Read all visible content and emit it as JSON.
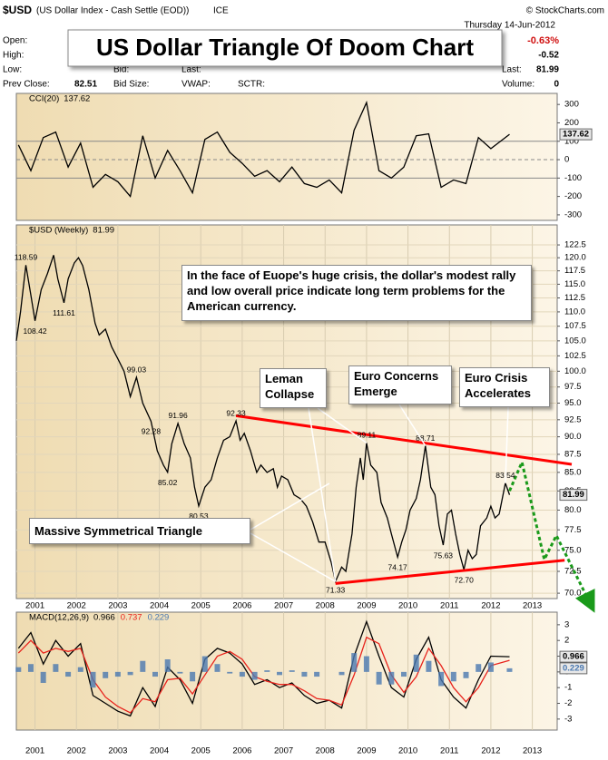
{
  "header": {
    "symbol": "$USD",
    "name": "(US Dollar Index - Cash Settle (EOD))",
    "exchange": "ICE",
    "source": "© StockCharts.com",
    "date": "Thursday 14-Jun-2012",
    "title": "US Dollar Triangle Of Doom Chart",
    "fields": {
      "open": "Open:",
      "high": "High:",
      "low": "Low:",
      "prev_close": "Prev Close:",
      "prev_close_value": "82.51",
      "bid": "Bid:",
      "bid_size": "Bid Size:",
      "last_left": "Last:",
      "vwap": "VWAP:",
      "sctr": "SCTR:",
      "change_pct": "-0.63%",
      "change": "-0.52",
      "last": "Last:",
      "last_value": "81.99",
      "volume": "Volume:",
      "volume_value": "0"
    }
  },
  "notes": [
    "In the face of Euope's huge crisis, the dollar's modest rally and low overall price indicate long term problems for the American currency.",
    "Leman Collapse",
    "Euro Concerns Emerge",
    "Euro Crisis Accelerates",
    "Massive Symmetrical Triangle"
  ],
  "chart_data": [
    {
      "type": "line",
      "label": "CCI(20)",
      "xlim": [
        2000.55,
        2013.6
      ],
      "ylim": [
        -330,
        360
      ],
      "yticks": [
        300,
        200,
        100,
        0,
        -100,
        -200,
        -300
      ],
      "hlines": [
        100,
        0,
        -100
      ],
      "x": [
        2000.6,
        2000.9,
        2001.2,
        2001.5,
        2001.8,
        2002.1,
        2002.4,
        2002.7,
        2003.0,
        2003.3,
        2003.6,
        2003.9,
        2004.2,
        2004.5,
        2004.8,
        2005.1,
        2005.4,
        2005.7,
        2006.0,
        2006.3,
        2006.6,
        2006.9,
        2007.2,
        2007.5,
        2007.8,
        2008.1,
        2008.4,
        2008.7,
        2009.0,
        2009.3,
        2009.6,
        2009.9,
        2010.2,
        2010.5,
        2010.8,
        2011.1,
        2011.4,
        2011.7,
        2012.0,
        2012.45
      ],
      "series": [
        {
          "name": "CCI(20)",
          "color": "#000000",
          "values": [
            80,
            -60,
            120,
            150,
            -40,
            90,
            -150,
            -80,
            -120,
            -200,
            130,
            -100,
            50,
            -60,
            -180,
            110,
            150,
            40,
            -20,
            -90,
            -60,
            -120,
            -40,
            -130,
            -150,
            -110,
            -180,
            160,
            310,
            -60,
            -100,
            -40,
            130,
            140,
            -150,
            -110,
            -130,
            120,
            60,
            137.62
          ]
        }
      ]
    },
    {
      "type": "line",
      "label": "$USD (Weekly)",
      "log_scale": true,
      "xlim": [
        2000.55,
        2013.6
      ],
      "ylim": [
        69.4,
        126.5
      ],
      "xticks": [
        2001,
        2002,
        2003,
        2004,
        2005,
        2006,
        2007,
        2008,
        2009,
        2010,
        2011,
        2012,
        2013
      ],
      "yticks": [
        {
          "value": 70,
          "label": "70.0"
        },
        72.5,
        {
          "value": 75,
          "label": "75.0"
        },
        77.5,
        {
          "value": 80,
          "label": "80.0"
        },
        82.5,
        {
          "value": 85,
          "label": "85.0"
        },
        87.5,
        {
          "value": 90,
          "label": "90.0"
        },
        92.5,
        {
          "value": 95,
          "label": "95.0"
        },
        97.5,
        {
          "value": 100,
          "label": "100.0"
        },
        102.5,
        {
          "value": 105,
          "label": "105.0"
        },
        107.5,
        {
          "value": 110,
          "label": "110.0"
        },
        112.5,
        {
          "value": 115,
          "label": "115.0"
        },
        117.5,
        {
          "value": 120,
          "label": "120.0"
        },
        122.5
      ],
      "x": [
        2000.55,
        2000.65,
        2000.78,
        2000.9,
        2001.0,
        2001.15,
        2001.3,
        2001.45,
        2001.55,
        2001.7,
        2001.8,
        2001.95,
        2002.05,
        2002.15,
        2002.3,
        2002.45,
        2002.55,
        2002.7,
        2002.85,
        2003.0,
        2003.15,
        2003.3,
        2003.45,
        2003.6,
        2003.8,
        2003.95,
        2004.1,
        2004.2,
        2004.3,
        2004.45,
        2004.6,
        2004.75,
        2004.85,
        2004.95,
        2005.1,
        2005.25,
        2005.4,
        2005.55,
        2005.7,
        2005.85,
        2005.95,
        2006.05,
        2006.2,
        2006.35,
        2006.45,
        2006.6,
        2006.75,
        2006.85,
        2006.95,
        2007.1,
        2007.25,
        2007.4,
        2007.55,
        2007.7,
        2007.85,
        2008.0,
        2008.15,
        2008.25,
        2008.4,
        2008.5,
        2008.65,
        2008.75,
        2008.85,
        2008.92,
        2009.0,
        2009.1,
        2009.25,
        2009.35,
        2009.5,
        2009.6,
        2009.75,
        2009.85,
        2009.95,
        2010.05,
        2010.2,
        2010.3,
        2010.42,
        2010.55,
        2010.65,
        2010.75,
        2010.85,
        2010.95,
        2011.05,
        2011.15,
        2011.25,
        2011.35,
        2011.45,
        2011.55,
        2011.65,
        2011.75,
        2011.9,
        2012.0,
        2012.1,
        2012.2,
        2012.35,
        2012.45
      ],
      "series": [
        {
          "name": "$USD",
          "color": "#000000",
          "values": [
            105,
            110,
            118.59,
            113,
            108.42,
            114,
            117,
            120.5,
            116,
            111.61,
            116,
            119,
            120,
            118.5,
            114,
            108,
            106,
            107,
            104,
            102,
            100,
            96,
            99.03,
            95,
            92.28,
            88,
            86,
            85.02,
            89,
            91.96,
            89,
            87,
            83,
            80.53,
            83,
            84,
            87,
            89.5,
            90,
            92.33,
            89.5,
            90.5,
            88,
            85,
            86,
            85,
            85.5,
            83,
            84.5,
            84,
            82,
            81.5,
            80.5,
            78.5,
            76,
            76,
            73.5,
            71.33,
            73,
            72.5,
            77,
            83,
            87,
            84,
            89.11,
            86,
            85,
            81,
            79,
            77,
            74.17,
            76,
            77.5,
            80,
            81.5,
            84,
            88.71,
            83,
            82,
            78,
            75.63,
            79.5,
            80,
            77,
            74.5,
            72.7,
            75,
            74,
            74.5,
            78,
            79,
            80.5,
            79,
            79.5,
            83.54,
            81.99
          ]
        }
      ],
      "annotations": {
        "x": [
          2000.78,
          2001.0,
          2001.7,
          2003.45,
          2003.8,
          2004.45,
          2004.2,
          2004.95,
          2005.85,
          2008.25,
          2009.0,
          2010.42,
          2009.75,
          2010.85,
          2011.35,
          2012.35
        ],
        "values": [
          118.59,
          108.42,
          111.61,
          99.03,
          92.28,
          91.96,
          85.02,
          80.53,
          92.33,
          71.33,
          89.11,
          88.71,
          74.17,
          75.63,
          72.7,
          83.54
        ],
        "value_labels": [
          "118.59",
          "108.42",
          "111.61",
          "99.03",
          "92.28",
          "91.96",
          "85.02",
          "80.53",
          "92.33",
          "71.33",
          "89.11",
          "88.71",
          "74.17",
          "75.63",
          "72.70",
          "83.54"
        ]
      },
      "trendlines": [
        {
          "color": "#ff0000",
          "x": [
            2005.85,
            2013.95
          ],
          "values": [
            93.1,
            86.1
          ]
        },
        {
          "color": "#ff0000",
          "x": [
            2008.25,
            2013.78
          ],
          "values": [
            71.1,
            73.8
          ]
        }
      ],
      "projection": {
        "color": "#1a9a1a",
        "x": [
          2012.45,
          2012.75,
          2013.29,
          2013.58,
          2014.39
        ],
        "values": [
          82.5,
          86.4,
          73.9,
          76.8,
          68.9
        ]
      }
    },
    {
      "type": "line",
      "label": "MACD(12,26,9)",
      "xlim": [
        2000.55,
        2013.6
      ],
      "ylim": [
        -3.7,
        3.8
      ],
      "yticks": [
        3,
        2,
        1,
        0,
        -1,
        -2,
        -3
      ],
      "xticks": [
        2001,
        2002,
        2003,
        2004,
        2005,
        2006,
        2007,
        2008,
        2009,
        2010,
        2011,
        2012,
        2013
      ],
      "x": [
        2000.6,
        2000.9,
        2001.2,
        2001.5,
        2001.8,
        2002.1,
        2002.4,
        2002.7,
        2003.0,
        2003.3,
        2003.6,
        2003.9,
        2004.2,
        2004.5,
        2004.8,
        2005.1,
        2005.4,
        2005.7,
        2006.0,
        2006.3,
        2006.6,
        2006.9,
        2007.2,
        2007.5,
        2007.8,
        2008.1,
        2008.4,
        2008.7,
        2009.0,
        2009.3,
        2009.6,
        2009.9,
        2010.2,
        2010.5,
        2010.8,
        2011.1,
        2011.4,
        2011.7,
        2012.0,
        2012.45
      ],
      "series": [
        {
          "name": "MACD",
          "color": "#000000",
          "values": [
            1.5,
            2.5,
            0.5,
            2.0,
            1.0,
            1.8,
            -1.5,
            -2.0,
            -2.5,
            -2.8,
            -1.0,
            -2.2,
            0.3,
            -0.5,
            -2.0,
            0.8,
            1.5,
            1.2,
            0.5,
            -0.8,
            -0.5,
            -1.0,
            -0.7,
            -1.5,
            -2.0,
            -1.8,
            -2.3,
            1.0,
            3.2,
            1.0,
            -1.0,
            -1.6,
            0.8,
            2.2,
            -0.5,
            -1.6,
            -2.3,
            -0.5,
            1.0,
            0.966
          ]
        },
        {
          "name": "Signal",
          "color": "#e8231c",
          "values": [
            1.2,
            2.0,
            1.2,
            1.5,
            1.3,
            1.5,
            -0.5,
            -1.6,
            -2.2,
            -2.6,
            -1.7,
            -1.9,
            -0.5,
            -0.4,
            -1.4,
            -0.2,
            1.0,
            1.3,
            0.8,
            -0.3,
            -0.6,
            -0.8,
            -0.8,
            -1.2,
            -1.7,
            -1.8,
            -2.1,
            -0.2,
            2.2,
            1.8,
            -0.2,
            -1.3,
            -0.3,
            1.5,
            0.4,
            -1.0,
            -1.9,
            -1.0,
            0.4,
            0.737
          ]
        },
        {
          "name": "Histogram",
          "color": "#4a78b0",
          "style": "histogram",
          "values": [
            0.3,
            0.5,
            -0.7,
            0.5,
            -0.3,
            0.3,
            -1.0,
            -0.4,
            -0.3,
            -0.2,
            0.7,
            -0.3,
            0.8,
            -0.1,
            -0.6,
            1.0,
            0.5,
            -0.1,
            -0.3,
            -0.5,
            0.1,
            -0.2,
            0.1,
            -0.3,
            -0.3,
            0.0,
            -0.2,
            1.2,
            1.0,
            -0.8,
            -0.8,
            -0.3,
            1.1,
            0.7,
            -0.9,
            -0.6,
            -0.4,
            0.5,
            0.6,
            0.229
          ]
        }
      ]
    }
  ]
}
